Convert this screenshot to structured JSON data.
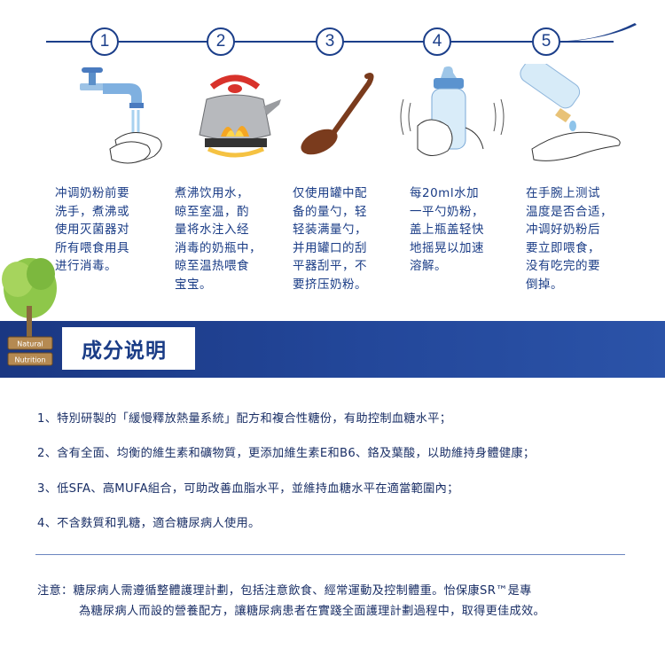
{
  "steps": [
    {
      "num": "1",
      "text": "冲调奶粉前要\n洗手，煮沸或\n使用灭菌器对\n所有喂食用具\n进行消毒。"
    },
    {
      "num": "2",
      "text": "煮沸饮用水，\n晾至室温，酌\n量将水注入经\n消毒的奶瓶中，\n晾至温热喂食\n宝宝。"
    },
    {
      "num": "3",
      "text": "仅使用罐中配\n备的量勺，轻\n轻装满量勺，\n并用罐口的刮\n平器刮平，不\n要挤压奶粉。"
    },
    {
      "num": "4",
      "text": "每20ml水加\n一平勺奶粉，\n盖上瓶盖轻快\n地摇晃以加速\n溶解。"
    },
    {
      "num": "5",
      "text": "在手腕上测试\n温度是否合适，\n冲调好奶粉后\n要立即喂食，\n没有吃完的要\n倒掉。"
    }
  ],
  "section": {
    "title": "成分说明",
    "sign_lines": [
      "Natural",
      "Nutrition"
    ]
  },
  "ingredients": [
    "1、特別研製的「緩慢釋放熱量系統」配方和複合性糖份，有助控制血糖水平；",
    "2、含有全面、均衡的維生素和礦物質，更添加維生素E和B6、鉻及葉酸，以助維持身體健康；",
    "3、低SFA、高MUFA組合，可助改善血脂水平，並維持血糖水平在適當範圍內；",
    "4、不含麩質和乳糖，適合糖尿病人使用。"
  ],
  "note": {
    "line1": "注意：糖尿病人需遵循整體護理計劃，包括注意飲食、經常運動及控制體重。怡保康SR™是專",
    "line2": "為糖尿病人而設的營養配方，讓糖尿病患者在實踐全面護理計劃過程中，取得更佳成效。"
  },
  "colors": {
    "primary": "#1c3f8a",
    "band": "#23479a",
    "text": "#1a3c86"
  }
}
